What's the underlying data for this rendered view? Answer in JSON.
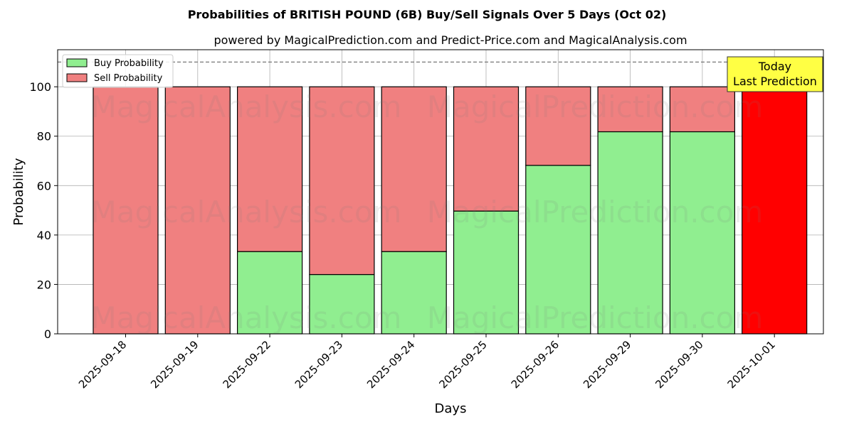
{
  "chart_data": {
    "type": "bar",
    "stacked": true,
    "title": "Probabilities of BRITISH POUND (6B) Buy/Sell Signals Over 5 Days (Oct 02)",
    "subtitle": "powered by MagicalPrediction.com and Predict-Price.com and MagicalAnalysis.com",
    "xlabel": "Days",
    "ylabel": "Probability",
    "ylim": [
      0,
      115
    ],
    "yticks": [
      0,
      20,
      40,
      60,
      80,
      100
    ],
    "grid": true,
    "reference_line": 110,
    "legend_position": "top-left",
    "categories": [
      "2025-09-18",
      "2025-09-19",
      "2025-09-22",
      "2025-09-23",
      "2025-09-24",
      "2025-09-25",
      "2025-09-26",
      "2025-09-29",
      "2025-09-30",
      "2025-10-01"
    ],
    "series": [
      {
        "name": "Buy Probability",
        "color": "#90ee90",
        "values": [
          0,
          0,
          33.3,
          24,
          33.3,
          49.7,
          68.2,
          81.8,
          81.8,
          0
        ]
      },
      {
        "name": "Sell Probability",
        "color": "#f08080",
        "values": [
          100,
          100,
          66.7,
          76,
          66.7,
          50.3,
          31.8,
          18.2,
          18.2,
          100
        ]
      }
    ],
    "highlight": {
      "index": 9,
      "color": "#ff0000"
    },
    "annotation": {
      "lines": [
        "Today",
        "Last Prediction"
      ],
      "background": "#ffff44"
    },
    "watermarks": [
      "MagicalAnalysis.com",
      "MagicalPrediction.com"
    ]
  }
}
